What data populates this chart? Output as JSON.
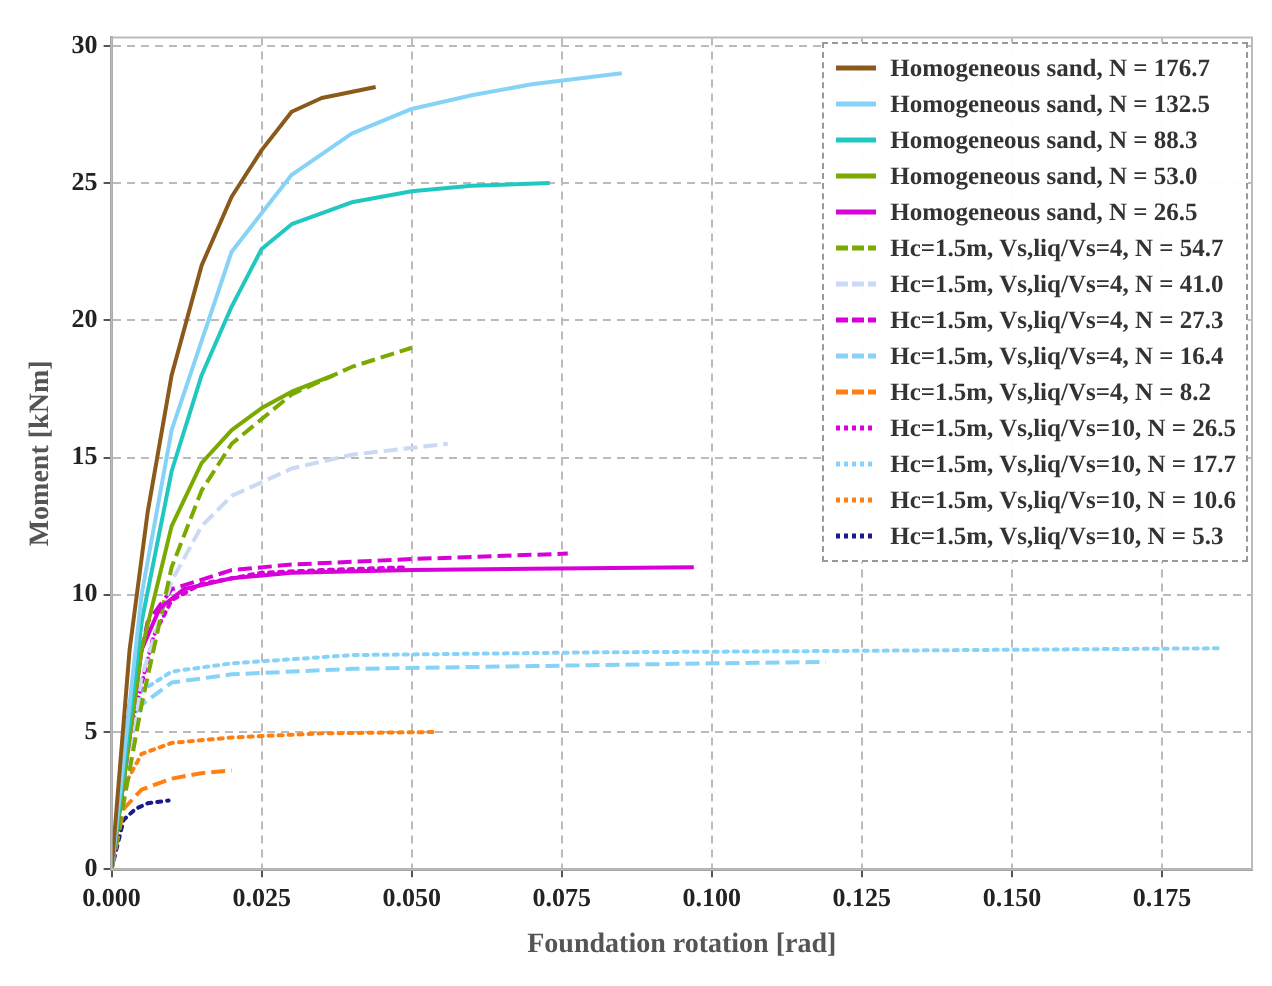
{
  "chart_data": {
    "type": "line",
    "xlabel": "Foundation rotation [rad]",
    "ylabel": "Moment [kNm]",
    "xlim": [
      0,
      0.19
    ],
    "ylim": [
      0,
      30.3
    ],
    "xticks": [
      {
        "value": 0,
        "label": "0.000"
      },
      {
        "value": 0.025,
        "label": "0.025"
      },
      {
        "value": 0.05,
        "label": "0.050"
      },
      {
        "value": 0.075,
        "label": "0.075"
      },
      {
        "value": 0.1,
        "label": "0.100"
      },
      {
        "value": 0.125,
        "label": "0.125"
      },
      {
        "value": 0.15,
        "label": "0.150"
      },
      {
        "value": 0.175,
        "label": "0.175"
      }
    ],
    "yticks": [
      0,
      5,
      10,
      15,
      20,
      25,
      30
    ],
    "grid": true,
    "legend": "top right",
    "marker": "none",
    "series": [
      {
        "name": "Homogeneous sand, N = 176.7",
        "color": "#8b5a1a",
        "line_style": "solid",
        "x": [
          0,
          0.003,
          0.006,
          0.01,
          0.015,
          0.02,
          0.025,
          0.03,
          0.035,
          0.044
        ],
        "values": [
          0,
          8,
          13,
          18,
          22,
          24.5,
          26.2,
          27.6,
          28.1,
          28.5
        ]
      },
      {
        "name": "Homogeneous sand, N = 132.5",
        "color": "#87d3f8",
        "line_style": "solid",
        "x": [
          0,
          0.005,
          0.01,
          0.02,
          0.03,
          0.04,
          0.05,
          0.06,
          0.07,
          0.085
        ],
        "values": [
          0,
          10,
          16,
          22.5,
          25.3,
          26.8,
          27.7,
          28.2,
          28.6,
          29
        ]
      },
      {
        "name": "Homogeneous sand, N = 88.3",
        "color": "#20c8c0",
        "line_style": "solid",
        "x": [
          0,
          0.005,
          0.01,
          0.015,
          0.02,
          0.025,
          0.03,
          0.04,
          0.05,
          0.06,
          0.073
        ],
        "values": [
          0,
          9,
          14.5,
          18,
          20.5,
          22.6,
          23.5,
          24.3,
          24.7,
          24.9,
          25
        ]
      },
      {
        "name": "Homogeneous sand, N = 53.0",
        "color": "#7aaa00",
        "line_style": "solid",
        "x": [
          0,
          0.005,
          0.01,
          0.015,
          0.02,
          0.025,
          0.03,
          0.037
        ],
        "values": [
          0,
          8,
          12.5,
          14.8,
          16,
          16.8,
          17.4,
          18
        ]
      },
      {
        "name": "Homogeneous sand, N = 26.5",
        "color": "#d800d8",
        "line_style": "solid",
        "x": [
          0,
          0.005,
          0.008,
          0.012,
          0.02,
          0.03,
          0.05,
          0.07,
          0.097
        ],
        "values": [
          0,
          8,
          9.5,
          10.2,
          10.6,
          10.8,
          10.9,
          10.95,
          11
        ]
      },
      {
        "name": "Hc=1.5m, Vs,liq/Vs=4, N = 54.7",
        "color": "#7aaa00",
        "line_style": "dashed",
        "x": [
          0,
          0.005,
          0.01,
          0.015,
          0.02,
          0.03,
          0.04,
          0.05
        ],
        "values": [
          0,
          6,
          11,
          13.8,
          15.5,
          17.3,
          18.3,
          19
        ]
      },
      {
        "name": "Hc=1.5m, Vs,liq/Vs=4, N = 41.0",
        "color": "#cbd9f5",
        "line_style": "dashed",
        "x": [
          0,
          0.005,
          0.01,
          0.015,
          0.02,
          0.03,
          0.04,
          0.056
        ],
        "values": [
          0,
          7,
          10.5,
          12.5,
          13.6,
          14.6,
          15.1,
          15.5
        ]
      },
      {
        "name": "Hc=1.5m, Vs,liq/Vs=4, N = 27.3",
        "color": "#d800d8",
        "line_style": "dashed",
        "x": [
          0,
          0.003,
          0.006,
          0.01,
          0.02,
          0.03,
          0.05,
          0.076
        ],
        "values": [
          0,
          6,
          9,
          10.2,
          10.9,
          11.1,
          11.3,
          11.5
        ]
      },
      {
        "name": "Hc=1.5m, Vs,liq/Vs=4, N = 16.4",
        "color": "#87d3f8",
        "line_style": "dashed",
        "x": [
          0,
          0.002,
          0.005,
          0.01,
          0.02,
          0.04,
          0.07,
          0.1,
          0.119
        ],
        "values": [
          0,
          4,
          6,
          6.8,
          7.1,
          7.3,
          7.4,
          7.5,
          7.55
        ]
      },
      {
        "name": "Hc=1.5m, Vs,liq/Vs=4, N = 8.2",
        "color": "#ff8010",
        "line_style": "dashed",
        "x": [
          0,
          0.002,
          0.005,
          0.01,
          0.015,
          0.02
        ],
        "values": [
          0,
          2.2,
          2.9,
          3.3,
          3.5,
          3.6
        ]
      },
      {
        "name": "Hc=1.5m, Vs,liq/Vs=10, N = 26.5",
        "color": "#d800d8",
        "line_style": "dotted",
        "x": [
          0,
          0.003,
          0.007,
          0.01,
          0.015,
          0.025,
          0.035,
          0.049
        ],
        "values": [
          0,
          5,
          8.5,
          9.8,
          10.4,
          10.8,
          10.9,
          11
        ]
      },
      {
        "name": "Hc=1.5m, Vs,liq/Vs=10, N = 17.7",
        "color": "#87d3f8",
        "line_style": "dotted",
        "x": [
          0,
          0.002,
          0.005,
          0.01,
          0.02,
          0.04,
          0.08,
          0.12,
          0.185
        ],
        "values": [
          0,
          4,
          6.5,
          7.2,
          7.5,
          7.8,
          7.9,
          7.95,
          8.05
        ]
      },
      {
        "name": "Hc=1.5m, Vs,liq/Vs=10, N = 10.6",
        "color": "#ff8010",
        "line_style": "dotted",
        "x": [
          0,
          0.002,
          0.005,
          0.01,
          0.02,
          0.035,
          0.054
        ],
        "values": [
          0,
          3,
          4.2,
          4.6,
          4.8,
          4.95,
          5
        ]
      },
      {
        "name": "Hc=1.5m, Vs,liq/Vs=10, N = 5.3",
        "color": "#1a1a8a",
        "line_style": "dotted",
        "x": [
          0,
          0.002,
          0.004,
          0.006,
          0.0095
        ],
        "values": [
          0,
          1.8,
          2.2,
          2.4,
          2.5
        ]
      }
    ]
  }
}
